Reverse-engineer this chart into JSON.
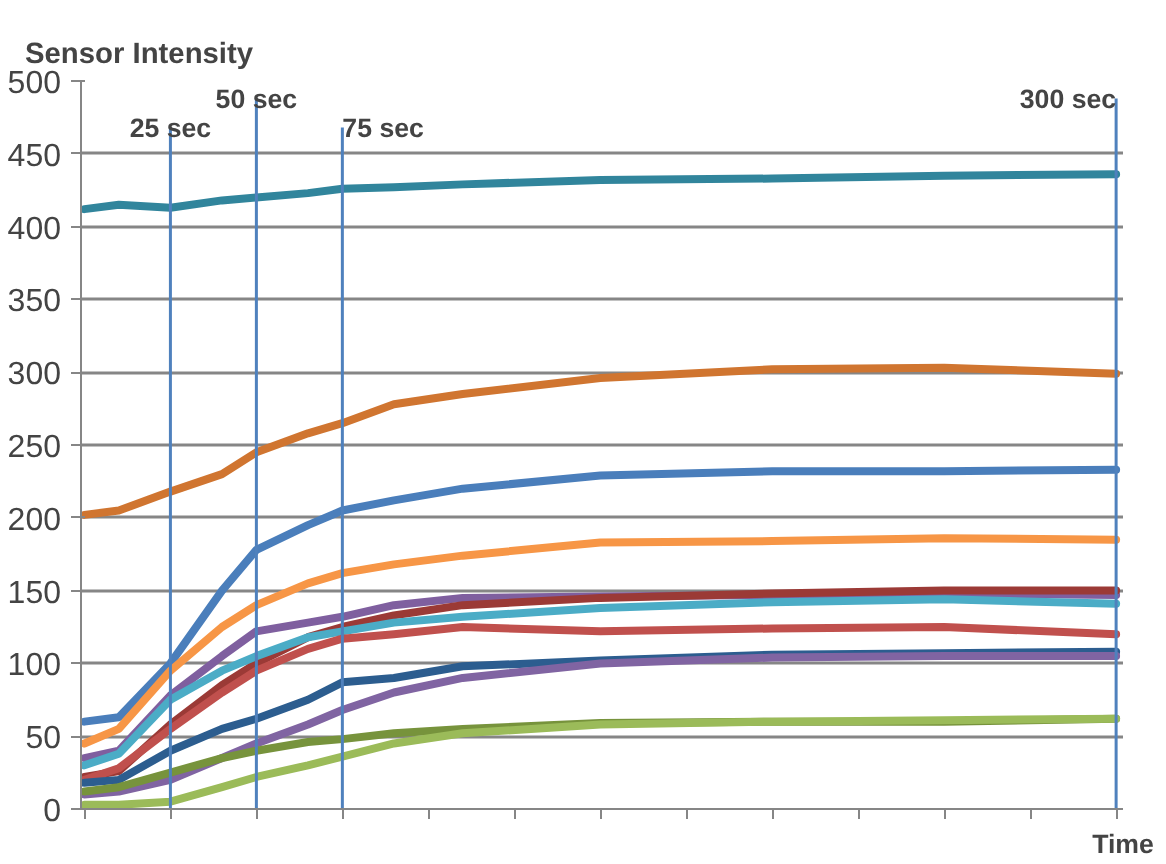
{
  "chart_data": {
    "type": "line",
    "title": "Sensor Intensity",
    "xlabel": "Time",
    "x": [
      0,
      10,
      25,
      40,
      50,
      65,
      75,
      90,
      110,
      150,
      200,
      250,
      300
    ],
    "xlim": [
      -1,
      302
    ],
    "xticks": [
      {
        "value": 0,
        "label": null
      },
      {
        "value": 25,
        "label": null
      },
      {
        "value": 50,
        "label": null
      },
      {
        "value": 75,
        "label": null
      },
      {
        "value": 100,
        "label": null
      },
      {
        "value": 125,
        "label": null
      },
      {
        "value": 150,
        "label": null
      },
      {
        "value": 175,
        "label": null
      },
      {
        "value": 200,
        "label": null
      },
      {
        "value": 225,
        "label": null
      },
      {
        "value": 250,
        "label": null
      },
      {
        "value": 275,
        "label": null
      },
      {
        "value": 300,
        "label": null
      }
    ],
    "ylim": [
      0,
      500
    ],
    "yticks": [
      0,
      50,
      100,
      150,
      200,
      250,
      300,
      350,
      400,
      450,
      500
    ],
    "grid": "y",
    "marker": "none",
    "line_style": "solid",
    "series": [
      {
        "color": "#31859c",
        "values": [
          412,
          415,
          413,
          418,
          420,
          423,
          426,
          427,
          429,
          432,
          433,
          435,
          436
        ]
      },
      {
        "color": "#d07530",
        "values": [
          202,
          205,
          218,
          230,
          245,
          258,
          265,
          278,
          285,
          296,
          302,
          303,
          299
        ]
      },
      {
        "color": "#4a7ebb",
        "values": [
          60,
          63,
          100,
          150,
          178,
          195,
          205,
          212,
          220,
          229,
          232,
          232,
          233
        ]
      },
      {
        "color": "#f79646",
        "values": [
          45,
          55,
          95,
          125,
          140,
          155,
          162,
          168,
          174,
          183,
          184,
          186,
          185
        ]
      },
      {
        "color": "#7f5f9f",
        "values": [
          35,
          40,
          78,
          105,
          122,
          128,
          132,
          140,
          145,
          146,
          147,
          148,
          147
        ]
      },
      {
        "color": "#9b3a36",
        "values": [
          22,
          26,
          58,
          85,
          100,
          118,
          125,
          133,
          140,
          145,
          148,
          150,
          150
        ]
      },
      {
        "color": "#4bacc6",
        "values": [
          30,
          38,
          75,
          95,
          105,
          118,
          122,
          128,
          132,
          138,
          142,
          144,
          141
        ]
      },
      {
        "color": "#c0504d",
        "values": [
          20,
          28,
          55,
          80,
          95,
          110,
          117,
          120,
          125,
          122,
          124,
          125,
          120
        ]
      },
      {
        "color": "#2c5d8f",
        "values": [
          18,
          20,
          40,
          55,
          62,
          75,
          87,
          90,
          98,
          102,
          106,
          107,
          108
        ]
      },
      {
        "color": "#8064a2",
        "values": [
          10,
          12,
          20,
          35,
          45,
          58,
          68,
          80,
          90,
          100,
          104,
          105,
          105
        ]
      },
      {
        "color": "#77933c",
        "values": [
          12,
          15,
          25,
          35,
          40,
          46,
          48,
          52,
          55,
          59,
          60,
          60,
          62
        ]
      },
      {
        "color": "#9bbb59",
        "values": [
          3,
          3,
          5,
          15,
          22,
          30,
          36,
          45,
          52,
          58,
          60,
          61,
          62
        ]
      }
    ],
    "ref_lines": [
      {
        "axis": "x",
        "value": 25,
        "label": "25 sec",
        "color": "#4f81bd"
      },
      {
        "axis": "x",
        "value": 50,
        "label": "50 sec",
        "color": "#4f81bd"
      },
      {
        "axis": "x",
        "value": 75,
        "label": "75 sec",
        "color": "#4f81bd"
      },
      {
        "axis": "x",
        "value": 300,
        "label": "300 sec",
        "color": "#4f81bd"
      }
    ]
  }
}
